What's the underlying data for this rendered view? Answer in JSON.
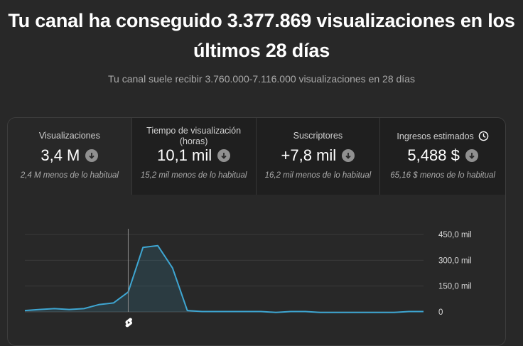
{
  "header": {
    "title_line1": "Tu canal ha conseguido 3.377.869 visualizaciones en los",
    "title_line2": "últimos 28 días",
    "subtitle": "Tu canal suele recibir 3.760.000-7.116.000 visualizaciones en 28 días"
  },
  "metrics": [
    {
      "label": "Visualizaciones",
      "value": "3,4 M",
      "note": "2,4 M menos de lo habitual",
      "trend_icon": "arrow-down-circle-icon"
    },
    {
      "label": "Tiempo de visualización (horas)",
      "value": "10,1 mil",
      "note": "15,2 mil menos de lo habitual",
      "trend_icon": "arrow-down-circle-icon"
    },
    {
      "label": "Suscriptores",
      "value": "+7,8 mil",
      "note": "16,2 mil menos de lo habitual",
      "trend_icon": "arrow-down-circle-icon"
    },
    {
      "label": "Ingresos estimados",
      "value": "5,488 $",
      "note": "65,16 $ menos de lo habitual",
      "trend_icon": "arrow-down-circle-icon",
      "extra_icon": "clock-icon"
    }
  ],
  "colors": {
    "line": "#3ea6d2",
    "area": "#3ea6d2",
    "marker": "#8a8a8a"
  },
  "chart_data": {
    "type": "area",
    "x": [
      1,
      2,
      3,
      4,
      5,
      6,
      7,
      8,
      9,
      10,
      11,
      12,
      13,
      14,
      15,
      16,
      17,
      18,
      19,
      20,
      21,
      22,
      23,
      24,
      25,
      26,
      27,
      28
    ],
    "values": [
      8000,
      14000,
      19000,
      14000,
      19000,
      42000,
      52000,
      115000,
      375000,
      385000,
      255000,
      8000,
      2000,
      2000,
      2000,
      2000,
      2000,
      -3000,
      2000,
      2000,
      -3000,
      -3000,
      -3000,
      -3000,
      -3000,
      -3000,
      2000,
      2000
    ],
    "y_ticks": [
      "450,0 mil",
      "300,0 mil",
      "150,0 mil",
      "0"
    ],
    "ylim": [
      0,
      450000
    ],
    "grid": true,
    "marker_x": 8,
    "marker_icon": "shorts-icon"
  }
}
